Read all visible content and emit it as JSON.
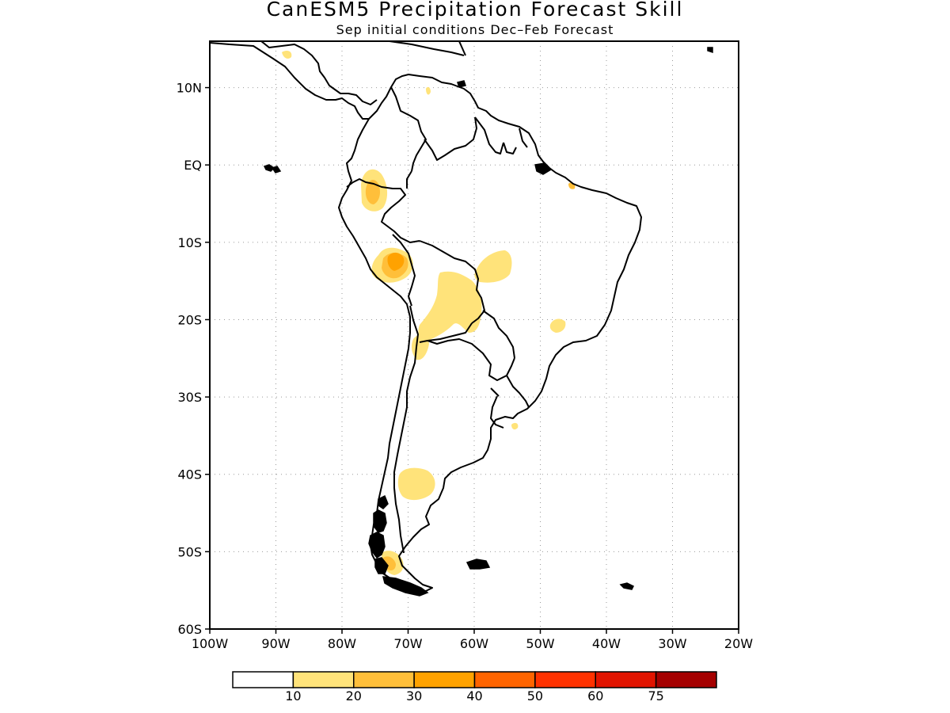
{
  "title": "CanESM5 Precipitation Forecast Skill",
  "subtitle": "Sep initial conditions  Dec–Feb Forecast",
  "map": {
    "lon_range": [
      -100,
      -20
    ],
    "lat_range": [
      -60,
      16
    ],
    "lat_ticks": [
      {
        "value": 10,
        "label": "10N"
      },
      {
        "value": 0,
        "label": "EQ"
      },
      {
        "value": -10,
        "label": "10S"
      },
      {
        "value": -20,
        "label": "20S"
      },
      {
        "value": -30,
        "label": "30S"
      },
      {
        "value": -40,
        "label": "40S"
      },
      {
        "value": -50,
        "label": "50S"
      },
      {
        "value": -60,
        "label": "60S"
      }
    ],
    "lon_ticks": [
      {
        "value": -100,
        "label": "100W"
      },
      {
        "value": -90,
        "label": "90W"
      },
      {
        "value": -80,
        "label": "80W"
      },
      {
        "value": -70,
        "label": "70W"
      },
      {
        "value": -60,
        "label": "60W"
      },
      {
        "value": -50,
        "label": "50W"
      },
      {
        "value": -40,
        "label": "40W"
      },
      {
        "value": -30,
        "label": "30W"
      },
      {
        "value": -20,
        "label": "20W"
      }
    ],
    "grid": "dotted",
    "skill_regions": [
      {
        "level": 10,
        "color": "#ffe37a",
        "region": "northern Peru / Ecuador"
      },
      {
        "level": 20,
        "color": "#ffbf3a",
        "region": "northern Peru core"
      },
      {
        "level": 10,
        "color": "#ffe37a",
        "region": "southern Peru"
      },
      {
        "level": 20,
        "color": "#ffbf3a",
        "region": "southern Peru"
      },
      {
        "level": 30,
        "color": "#ffa200",
        "region": "southern Peru core"
      },
      {
        "level": 10,
        "color": "#ffe37a",
        "region": "Bolivia / Paraguay"
      },
      {
        "level": 10,
        "color": "#ffe37a",
        "region": "central Brazil"
      },
      {
        "level": 10,
        "color": "#ffe37a",
        "region": "northwest Argentina"
      },
      {
        "level": 10,
        "color": "#ffe37a",
        "region": "southeast Brazil"
      },
      {
        "level": 10,
        "color": "#ffe37a",
        "region": "northern Patagonia"
      },
      {
        "level": 20,
        "color": "#ffbf3a",
        "region": "southern Patagonia"
      },
      {
        "level": 10,
        "color": "#ffe37a",
        "region": "Venezuela"
      },
      {
        "level": 10,
        "color": "#ffe37a",
        "region": "Mexico"
      },
      {
        "level": 20,
        "color": "#ffbf3a",
        "region": "northeast Brazil coast"
      }
    ]
  },
  "colorbar": {
    "colors": [
      "#ffffff",
      "#ffe37a",
      "#ffbf3a",
      "#ffa200",
      "#ff6400",
      "#ff3200",
      "#e11400",
      "#a50000"
    ],
    "labels": [
      "10",
      "20",
      "30",
      "40",
      "50",
      "60",
      "75"
    ]
  }
}
